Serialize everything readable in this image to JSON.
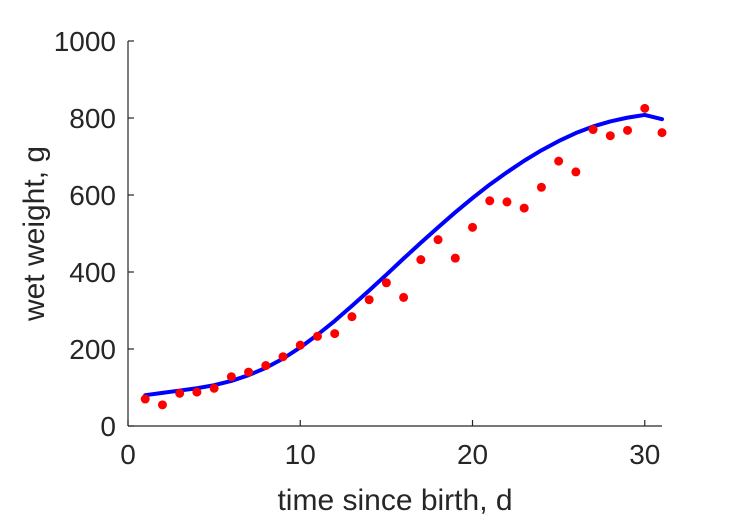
{
  "chart_data": {
    "type": "scatter",
    "title": "",
    "xlabel": "time since birth, d",
    "ylabel": "wet weight, g",
    "xlim": [
      0,
      31
    ],
    "ylim": [
      0,
      1000
    ],
    "xticks": [
      0,
      10,
      20,
      30
    ],
    "yticks": [
      0,
      200,
      400,
      600,
      800,
      1000
    ],
    "grid": false,
    "legend": "none",
    "series": [
      {
        "kind": "points",
        "color": "#ff0000",
        "x": [
          1,
          2,
          3,
          4,
          5,
          6,
          7,
          8,
          9,
          10,
          11,
          12,
          13,
          14,
          15,
          16,
          17,
          18,
          19,
          20,
          21,
          22,
          23,
          24,
          25,
          26,
          27,
          28,
          29,
          30,
          31
        ],
        "y": [
          70,
          55,
          85,
          88,
          98,
          128,
          140,
          157,
          180,
          210,
          233,
          240,
          284,
          328,
          372,
          334,
          432,
          484,
          436,
          516,
          585,
          582,
          566,
          620,
          688,
          660,
          770,
          754,
          768,
          825,
          762
        ]
      },
      {
        "kind": "line",
        "color": "#0000ff",
        "x": [
          1,
          2,
          3,
          4,
          5,
          6,
          7,
          8,
          9,
          10,
          11,
          12,
          13,
          14,
          15,
          16,
          17,
          18,
          19,
          20,
          21,
          22,
          23,
          24,
          25,
          26,
          27,
          28,
          29,
          30,
          31
        ],
        "y": [
          80,
          86,
          92,
          98,
          106,
          117,
          132,
          151,
          175,
          204,
          237,
          273,
          312,
          352,
          393,
          435,
          476,
          516,
          555,
          592,
          627,
          659,
          689,
          716,
          740,
          761,
          778,
          791,
          801,
          808,
          797
        ]
      }
    ]
  }
}
